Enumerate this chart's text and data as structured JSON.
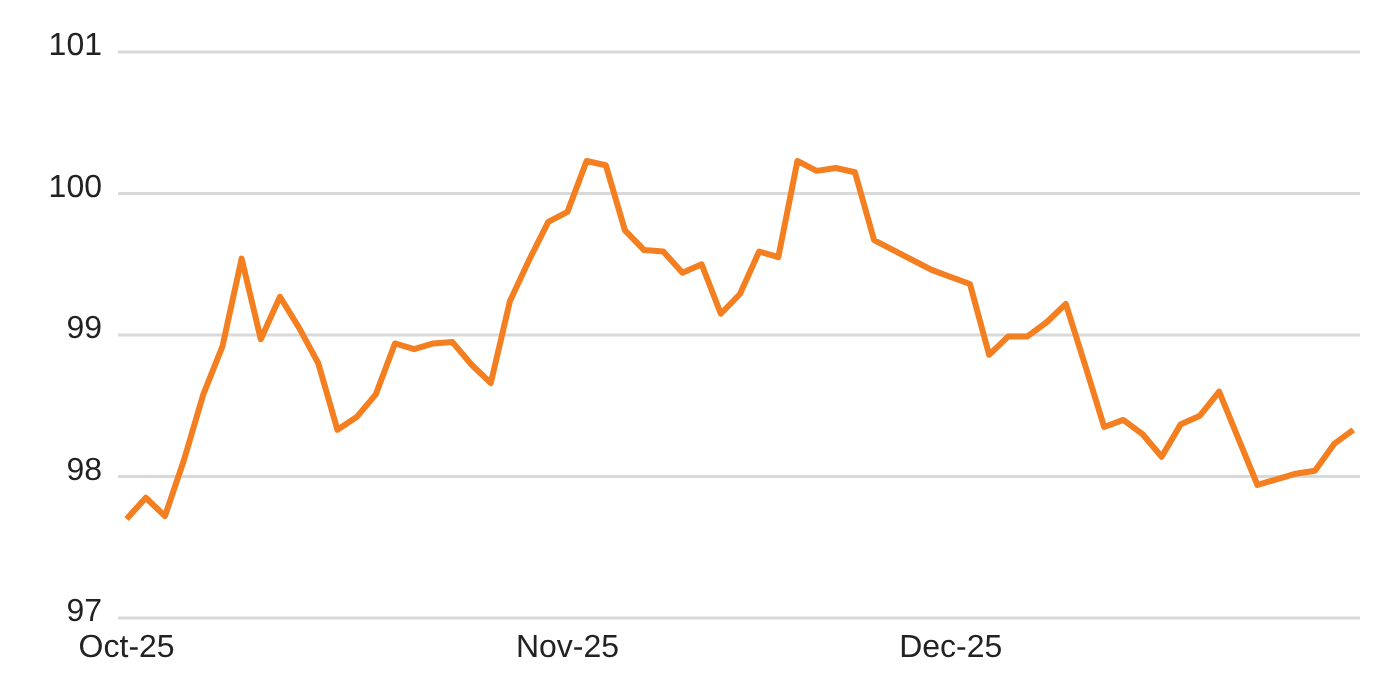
{
  "chart_data": {
    "type": "line",
    "categories": [
      "Oct-25",
      null,
      null,
      null,
      null,
      null,
      null,
      null,
      null,
      null,
      null,
      null,
      null,
      null,
      null,
      null,
      null,
      null,
      null,
      null,
      null,
      null,
      null,
      "Nov-25",
      null,
      null,
      null,
      null,
      null,
      null,
      null,
      null,
      null,
      null,
      null,
      null,
      null,
      null,
      null,
      null,
      null,
      null,
      null,
      "Dec-25",
      null,
      null,
      null,
      null,
      null,
      null,
      null,
      null,
      null,
      null,
      null,
      null,
      null,
      null,
      null,
      null,
      null,
      null,
      null,
      null,
      null
    ],
    "series": [
      {
        "color": "#f47f20",
        "values": [
          97.7,
          97.85,
          97.72,
          98.12,
          98.58,
          98.92,
          99.54,
          98.97,
          99.27,
          99.05,
          98.8,
          98.33,
          98.42,
          98.58,
          98.94,
          98.9,
          98.94,
          98.95,
          98.79,
          98.66,
          99.24,
          99.53,
          99.8,
          99.87,
          100.23,
          100.2,
          99.74,
          99.6,
          99.59,
          99.44,
          99.5,
          99.15,
          99.29,
          99.59,
          99.55,
          100.23,
          100.16,
          100.18,
          100.15,
          99.67,
          99.6,
          99.53,
          99.46,
          99.41,
          99.36,
          98.86,
          98.99,
          98.99,
          99.09,
          99.22,
          98.79,
          98.35,
          98.4,
          98.3,
          98.14,
          98.37,
          98.43,
          98.6,
          98.27,
          97.94,
          97.98,
          98.02,
          98.04,
          98.23,
          98.33
        ]
      }
    ],
    "ylim": [
      97,
      101
    ],
    "yticks": [
      97,
      98,
      99,
      100,
      101
    ],
    "grid": "y",
    "legend": false,
    "marker": "none",
    "line_style": "solid"
  }
}
